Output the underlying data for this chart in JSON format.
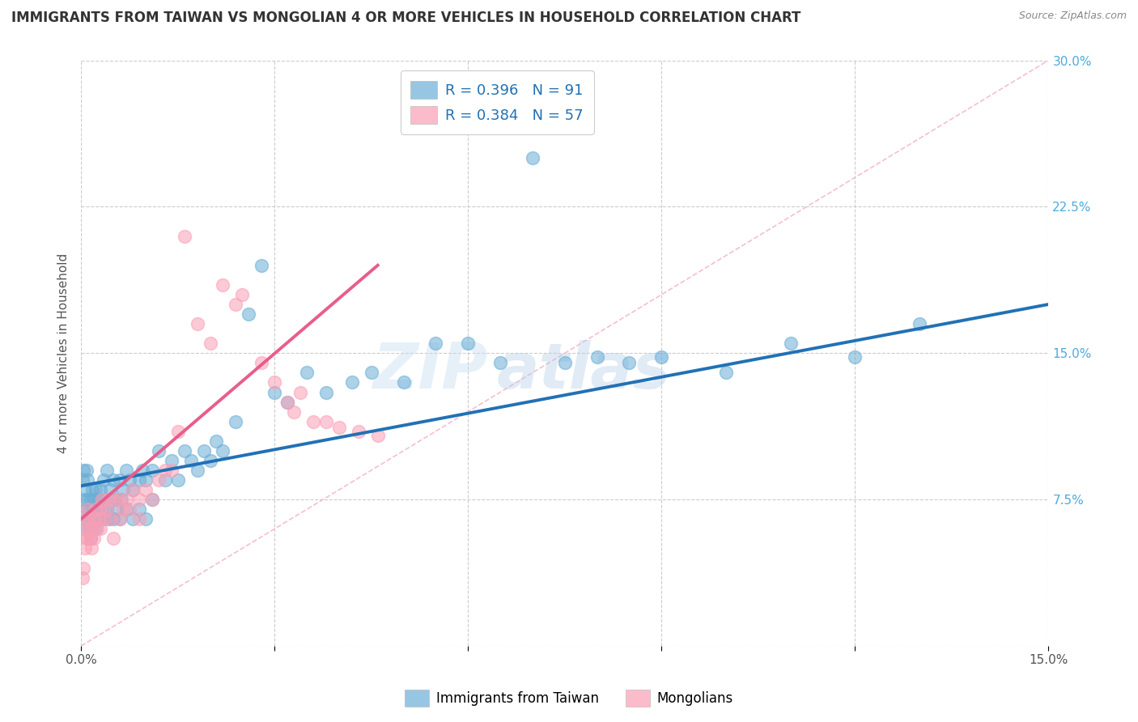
{
  "title": "IMMIGRANTS FROM TAIWAN VS MONGOLIAN 4 OR MORE VEHICLES IN HOUSEHOLD CORRELATION CHART",
  "source": "Source: ZipAtlas.com",
  "ylabel": "4 or more Vehicles in Household",
  "xlim": [
    0.0,
    0.15
  ],
  "ylim": [
    0.0,
    0.3
  ],
  "xticks": [
    0.0,
    0.03,
    0.06,
    0.09,
    0.12,
    0.15
  ],
  "xtick_labels": [
    "0.0%",
    "",
    "",
    "",
    "",
    "15.0%"
  ],
  "yticks_right": [
    0.0,
    0.075,
    0.15,
    0.225,
    0.3
  ],
  "ytick_labels_right": [
    "",
    "7.5%",
    "15.0%",
    "22.5%",
    "30.0%"
  ],
  "taiwan_color": "#6baed6",
  "mongolia_color": "#fa9fb5",
  "taiwan_line_color": "#2171b5",
  "mongolia_line_color": "#e85d8a",
  "diagonal_color": "#f4b8c8",
  "taiwan_R": 0.396,
  "taiwan_N": 91,
  "mongolia_R": 0.384,
  "mongolia_N": 57,
  "taiwan_scatter_x": [
    0.0002,
    0.0003,
    0.0005,
    0.0006,
    0.0007,
    0.0008,
    0.0008,
    0.0009,
    0.001,
    0.001,
    0.0012,
    0.0013,
    0.0014,
    0.0015,
    0.0015,
    0.0016,
    0.0017,
    0.0018,
    0.0018,
    0.002,
    0.002,
    0.0022,
    0.0022,
    0.0023,
    0.0025,
    0.0026,
    0.0027,
    0.003,
    0.003,
    0.0032,
    0.0033,
    0.0035,
    0.0035,
    0.004,
    0.004,
    0.0042,
    0.0043,
    0.0045,
    0.005,
    0.005,
    0.0052,
    0.0055,
    0.006,
    0.006,
    0.0062,
    0.0065,
    0.007,
    0.007,
    0.0075,
    0.008,
    0.008,
    0.009,
    0.009,
    0.0095,
    0.01,
    0.01,
    0.011,
    0.011,
    0.012,
    0.013,
    0.014,
    0.015,
    0.016,
    0.017,
    0.018,
    0.019,
    0.02,
    0.021,
    0.022,
    0.024,
    0.026,
    0.028,
    0.03,
    0.032,
    0.035,
    0.038,
    0.042,
    0.045,
    0.05,
    0.055,
    0.06,
    0.065,
    0.07,
    0.075,
    0.08,
    0.085,
    0.09,
    0.1,
    0.11,
    0.12,
    0.13
  ],
  "taiwan_scatter_y": [
    0.085,
    0.09,
    0.075,
    0.08,
    0.065,
    0.07,
    0.09,
    0.06,
    0.085,
    0.075,
    0.07,
    0.065,
    0.06,
    0.055,
    0.075,
    0.065,
    0.07,
    0.06,
    0.08,
    0.075,
    0.065,
    0.07,
    0.06,
    0.08,
    0.065,
    0.07,
    0.075,
    0.065,
    0.08,
    0.07,
    0.075,
    0.065,
    0.085,
    0.07,
    0.09,
    0.075,
    0.065,
    0.08,
    0.085,
    0.065,
    0.075,
    0.07,
    0.085,
    0.065,
    0.075,
    0.08,
    0.09,
    0.07,
    0.085,
    0.08,
    0.065,
    0.085,
    0.07,
    0.09,
    0.085,
    0.065,
    0.09,
    0.075,
    0.1,
    0.085,
    0.095,
    0.085,
    0.1,
    0.095,
    0.09,
    0.1,
    0.095,
    0.105,
    0.1,
    0.115,
    0.17,
    0.195,
    0.13,
    0.125,
    0.14,
    0.13,
    0.135,
    0.14,
    0.135,
    0.155,
    0.155,
    0.145,
    0.25,
    0.145,
    0.148,
    0.145,
    0.148,
    0.14,
    0.155,
    0.148,
    0.165
  ],
  "mongolia_scatter_x": [
    0.0002,
    0.0004,
    0.0005,
    0.0006,
    0.0007,
    0.0008,
    0.001,
    0.001,
    0.0012,
    0.0013,
    0.0015,
    0.0016,
    0.0018,
    0.002,
    0.002,
    0.0022,
    0.0025,
    0.0028,
    0.003,
    0.003,
    0.0032,
    0.0035,
    0.004,
    0.0042,
    0.0045,
    0.005,
    0.005,
    0.006,
    0.006,
    0.0065,
    0.007,
    0.0075,
    0.008,
    0.009,
    0.009,
    0.01,
    0.011,
    0.012,
    0.013,
    0.014,
    0.015,
    0.016,
    0.018,
    0.02,
    0.022,
    0.024,
    0.025,
    0.028,
    0.03,
    0.032,
    0.033,
    0.034,
    0.036,
    0.038,
    0.04,
    0.043,
    0.046
  ],
  "mongolia_scatter_y": [
    0.035,
    0.04,
    0.06,
    0.05,
    0.065,
    0.055,
    0.07,
    0.055,
    0.06,
    0.065,
    0.055,
    0.05,
    0.06,
    0.065,
    0.055,
    0.07,
    0.06,
    0.065,
    0.07,
    0.06,
    0.075,
    0.065,
    0.07,
    0.075,
    0.065,
    0.075,
    0.055,
    0.075,
    0.065,
    0.07,
    0.075,
    0.07,
    0.08,
    0.075,
    0.065,
    0.08,
    0.075,
    0.085,
    0.09,
    0.09,
    0.11,
    0.21,
    0.165,
    0.155,
    0.185,
    0.175,
    0.18,
    0.145,
    0.135,
    0.125,
    0.12,
    0.13,
    0.115,
    0.115,
    0.112,
    0.11,
    0.108
  ],
  "taiwan_line_x": [
    0.0,
    0.15
  ],
  "taiwan_line_y": [
    0.082,
    0.175
  ],
  "mongolia_line_x": [
    0.0,
    0.046
  ],
  "mongolia_line_y": [
    0.065,
    0.195
  ],
  "diagonal_line_x": [
    0.0,
    0.15
  ],
  "diagonal_line_y": [
    0.0,
    0.3
  ],
  "watermark": "ZIPatlas",
  "legend_label1": "Immigrants from Taiwan",
  "legend_label2": "Mongolians",
  "title_fontsize": 12,
  "axis_label_fontsize": 11,
  "tick_fontsize": 11,
  "background_color": "#ffffff",
  "grid_color": "#cccccc"
}
